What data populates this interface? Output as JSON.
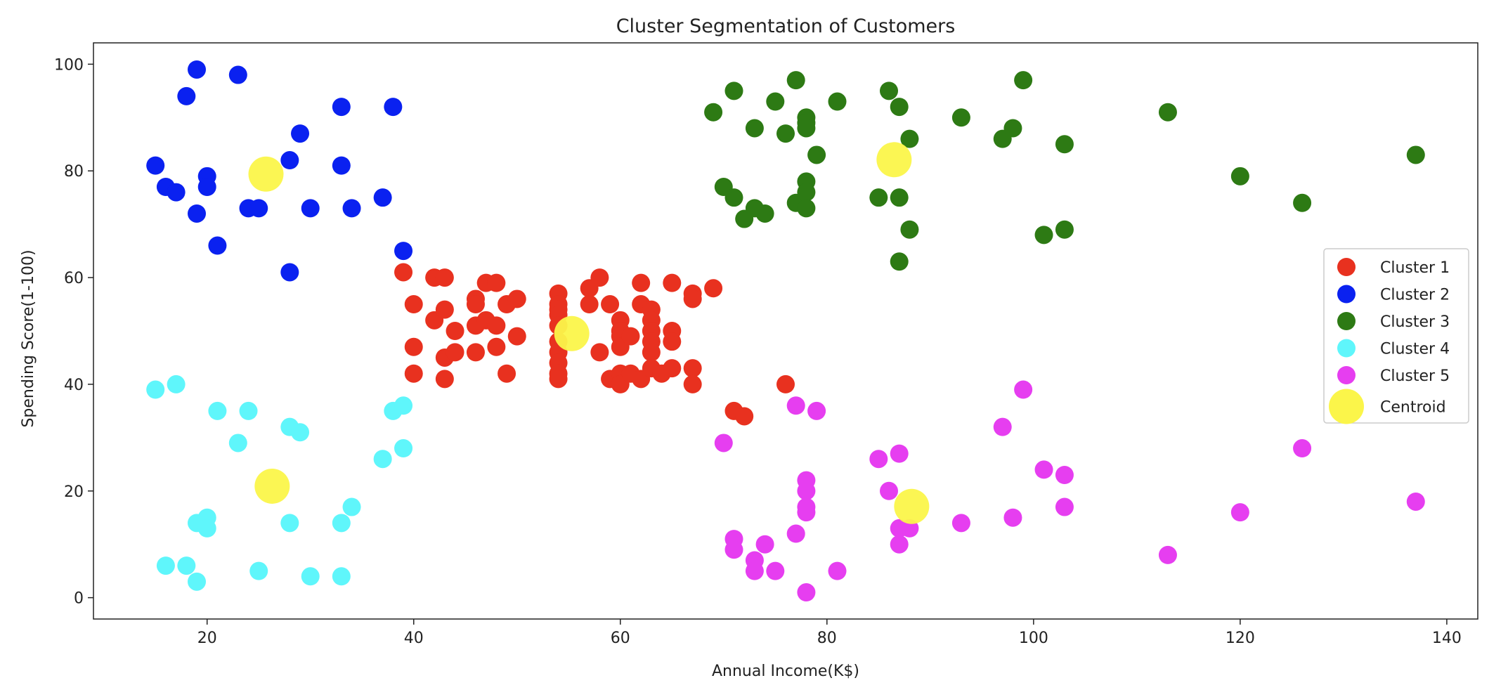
{
  "chart_data": {
    "type": "scatter",
    "title": "Cluster Segmentation of Customers",
    "xlabel": "Annual Income(K$)",
    "ylabel": "Spending Score(1-100)",
    "xlim": [
      9,
      143
    ],
    "ylim": [
      -4,
      104
    ],
    "xticks": [
      20,
      40,
      60,
      80,
      100,
      120,
      140
    ],
    "yticks": [
      0,
      20,
      40,
      60,
      80,
      100
    ],
    "grid": false,
    "legend_position": "center-right",
    "series": [
      {
        "name": "Cluster 1",
        "color": "#e8311f",
        "points": [
          [
            39,
            61
          ],
          [
            40,
            55
          ],
          [
            40,
            47
          ],
          [
            40,
            42
          ],
          [
            42,
            52
          ],
          [
            42,
            60
          ],
          [
            43,
            60
          ],
          [
            43,
            54
          ],
          [
            43,
            45
          ],
          [
            43,
            41
          ],
          [
            44,
            50
          ],
          [
            44,
            46
          ],
          [
            46,
            56
          ],
          [
            46,
            55
          ],
          [
            46,
            51
          ],
          [
            46,
            46
          ],
          [
            47,
            59
          ],
          [
            47,
            52
          ],
          [
            48,
            59
          ],
          [
            48,
            51
          ],
          [
            48,
            47
          ],
          [
            49,
            55
          ],
          [
            49,
            42
          ],
          [
            50,
            56
          ],
          [
            50,
            49
          ],
          [
            54,
            57
          ],
          [
            54,
            55
          ],
          [
            54,
            54
          ],
          [
            54,
            53
          ],
          [
            54,
            51
          ],
          [
            54,
            48
          ],
          [
            54,
            46
          ],
          [
            54,
            44
          ],
          [
            54,
            42
          ],
          [
            54,
            41
          ],
          [
            57,
            58
          ],
          [
            57,
            55
          ],
          [
            58,
            60
          ],
          [
            58,
            46
          ],
          [
            59,
            55
          ],
          [
            59,
            41
          ],
          [
            60,
            52
          ],
          [
            60,
            50
          ],
          [
            60,
            49
          ],
          [
            60,
            47
          ],
          [
            60,
            42
          ],
          [
            60,
            40
          ],
          [
            61,
            49
          ],
          [
            61,
            42
          ],
          [
            62,
            59
          ],
          [
            62,
            55
          ],
          [
            62,
            41
          ],
          [
            63,
            54
          ],
          [
            63,
            52
          ],
          [
            63,
            50
          ],
          [
            63,
            48
          ],
          [
            63,
            46
          ],
          [
            63,
            43
          ],
          [
            64,
            42
          ],
          [
            65,
            59
          ],
          [
            65,
            50
          ],
          [
            65,
            48
          ],
          [
            65,
            43
          ],
          [
            67,
            57
          ],
          [
            67,
            56
          ],
          [
            67,
            43
          ],
          [
            67,
            40
          ],
          [
            69,
            58
          ],
          [
            71,
            35
          ],
          [
            72,
            34
          ],
          [
            76,
            40
          ]
        ]
      },
      {
        "name": "Cluster 2",
        "color": "#0a21f0",
        "points": [
          [
            15,
            81
          ],
          [
            16,
            77
          ],
          [
            17,
            76
          ],
          [
            18,
            94
          ],
          [
            19,
            99
          ],
          [
            19,
            72
          ],
          [
            20,
            79
          ],
          [
            20,
            77
          ],
          [
            21,
            66
          ],
          [
            23,
            98
          ],
          [
            24,
            73
          ],
          [
            25,
            73
          ],
          [
            28,
            82
          ],
          [
            28,
            61
          ],
          [
            29,
            87
          ],
          [
            30,
            73
          ],
          [
            33,
            92
          ],
          [
            33,
            81
          ],
          [
            34,
            73
          ],
          [
            37,
            75
          ],
          [
            38,
            92
          ],
          [
            39,
            65
          ]
        ]
      },
      {
        "name": "Cluster 3",
        "color": "#2d7a14",
        "points": [
          [
            69,
            91
          ],
          [
            70,
            77
          ],
          [
            71,
            95
          ],
          [
            71,
            75
          ],
          [
            72,
            71
          ],
          [
            73,
            88
          ],
          [
            73,
            73
          ],
          [
            74,
            72
          ],
          [
            75,
            93
          ],
          [
            76,
            87
          ],
          [
            77,
            97
          ],
          [
            77,
            74
          ],
          [
            78,
            90
          ],
          [
            78,
            89
          ],
          [
            78,
            88
          ],
          [
            78,
            78
          ],
          [
            78,
            76
          ],
          [
            78,
            73
          ],
          [
            79,
            83
          ],
          [
            81,
            93
          ],
          [
            85,
            75
          ],
          [
            86,
            95
          ],
          [
            87,
            92
          ],
          [
            87,
            75
          ],
          [
            87,
            63
          ],
          [
            88,
            86
          ],
          [
            88,
            69
          ],
          [
            93,
            90
          ],
          [
            97,
            86
          ],
          [
            98,
            88
          ],
          [
            99,
            97
          ],
          [
            101,
            68
          ],
          [
            103,
            85
          ],
          [
            103,
            69
          ],
          [
            113,
            91
          ],
          [
            120,
            79
          ],
          [
            126,
            74
          ],
          [
            137,
            83
          ]
        ]
      },
      {
        "name": "Cluster 4",
        "color": "#5ff6fb",
        "points": [
          [
            15,
            39
          ],
          [
            16,
            6
          ],
          [
            17,
            40
          ],
          [
            18,
            6
          ],
          [
            19,
            14
          ],
          [
            19,
            3
          ],
          [
            20,
            15
          ],
          [
            20,
            13
          ],
          [
            21,
            35
          ],
          [
            23,
            29
          ],
          [
            24,
            35
          ],
          [
            25,
            5
          ],
          [
            28,
            32
          ],
          [
            28,
            14
          ],
          [
            29,
            31
          ],
          [
            30,
            4
          ],
          [
            33,
            14
          ],
          [
            33,
            4
          ],
          [
            34,
            17
          ],
          [
            37,
            26
          ],
          [
            38,
            35
          ],
          [
            39,
            36
          ],
          [
            39,
            28
          ]
        ]
      },
      {
        "name": "Cluster 5",
        "color": "#e63ef0",
        "points": [
          [
            70,
            29
          ],
          [
            71,
            11
          ],
          [
            71,
            9
          ],
          [
            73,
            7
          ],
          [
            73,
            5
          ],
          [
            74,
            10
          ],
          [
            75,
            5
          ],
          [
            77,
            36
          ],
          [
            77,
            12
          ],
          [
            78,
            22
          ],
          [
            78,
            20
          ],
          [
            78,
            17
          ],
          [
            78,
            16
          ],
          [
            78,
            1
          ],
          [
            79,
            35
          ],
          [
            81,
            5
          ],
          [
            85,
            26
          ],
          [
            86,
            20
          ],
          [
            87,
            27
          ],
          [
            87,
            13
          ],
          [
            87,
            10
          ],
          [
            88,
            13
          ],
          [
            93,
            14
          ],
          [
            97,
            32
          ],
          [
            98,
            15
          ],
          [
            99,
            39
          ],
          [
            101,
            24
          ],
          [
            103,
            23
          ],
          [
            103,
            17
          ],
          [
            113,
            8
          ],
          [
            120,
            16
          ],
          [
            126,
            28
          ],
          [
            137,
            18
          ]
        ]
      },
      {
        "name": "Centroid",
        "color": "#fbf54a",
        "points": [
          [
            25.7,
            79.4
          ],
          [
            55.3,
            49.5
          ],
          [
            86.5,
            82.1
          ],
          [
            26.3,
            20.9
          ],
          [
            88.2,
            17.1
          ]
        ]
      }
    ]
  }
}
